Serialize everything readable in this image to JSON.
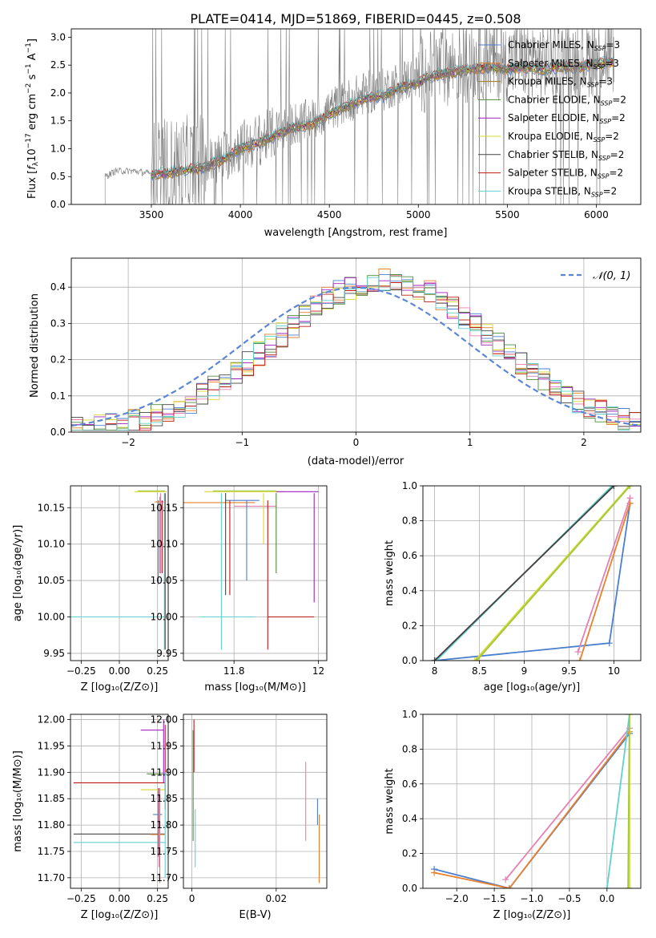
{
  "chart_data": [
    {
      "id": "spectrum",
      "type": "line",
      "title": "PLATE=0414, MJD=51869, FIBERID=0445, z=0.508",
      "xlabel": "wavelength [Angstrom, rest frame]",
      "ylabel": "Flux [fλ 10⁻¹⁷ erg cm⁻² s⁻¹ A⁻¹]",
      "xlim": [
        3050,
        6250
      ],
      "ylim": [
        0,
        3.15
      ],
      "xticks": [
        3500,
        4000,
        4500,
        5000,
        5500,
        6000
      ],
      "yticks": [
        0.0,
        0.5,
        1.0,
        1.5,
        2.0,
        2.5,
        3.0
      ],
      "data_x": [
        3240,
        3300,
        3400,
        3500,
        3600,
        3700,
        3800,
        3900,
        4000,
        4100,
        4200,
        4300,
        4400,
        4500,
        4600,
        4700,
        4800,
        4900,
        5000,
        5100,
        5200,
        5300,
        5400,
        5500,
        5600,
        5700,
        5800,
        5900,
        6000,
        6100
      ],
      "data_flux": [
        0.5,
        0.6,
        0.6,
        0.55,
        0.6,
        0.65,
        0.7,
        0.85,
        1.05,
        1.15,
        1.3,
        1.45,
        1.5,
        1.7,
        1.85,
        2.0,
        2.05,
        2.2,
        2.3,
        2.45,
        2.5,
        2.55,
        2.6,
        2.55,
        2.6,
        2.55,
        2.6,
        2.6,
        2.65,
        2.7
      ],
      "models": [
        {
          "name": "Chabrier MILES, N_SSP=3",
          "color": "#4a7fd0"
        },
        {
          "name": "Salpeter MILES, N_SSP=3",
          "color": "#e8802c"
        },
        {
          "name": "Kroupa MILES, N_SSP=3",
          "color": "#a0781e"
        },
        {
          "name": "Chabrier ELODIE, N_SSP=2",
          "color": "#4e8c3a"
        },
        {
          "name": "Salpeter ELODIE, N_SSP=2",
          "color": "#a020c0"
        },
        {
          "name": "Kroupa ELODIE, N_SSP=2",
          "color": "#d8d830"
        },
        {
          "name": "Chabrier STELIB, N_SSP=2",
          "color": "#444444"
        },
        {
          "name": "Salpeter STELIB, N_SSP=2",
          "color": "#c01818"
        },
        {
          "name": "Kroupa STELIB, N_SSP=2",
          "color": "#60d0d0"
        }
      ],
      "legend_names": [
        "Chabrier MILES, N",
        "Salpeter MILES, N",
        "Kroupa MILES, N",
        "Chabrier ELODIE, N",
        "Salpeter ELODIE, N",
        "Kroupa ELODIE, N",
        "Chabrier STELIB, N",
        "Salpeter STELIB, N",
        "Kroupa STELIB, N"
      ],
      "legend_sub": "SSP",
      "legend_nvals": [
        "=3",
        "=3",
        "=3",
        "=2",
        "=2",
        "=2",
        "=2",
        "=2",
        "=2"
      ],
      "legend": "top-right"
    },
    {
      "id": "residuals",
      "type": "histogram",
      "xlabel": "(data-model)/error",
      "ylabel": "Normed distribution",
      "xlim": [
        -2.5,
        2.5
      ],
      "ylim": [
        0,
        0.48
      ],
      "xticks": [
        -2,
        -1,
        0,
        1,
        2
      ],
      "yticks": [
        0.0,
        0.1,
        0.2,
        0.3,
        0.4
      ],
      "legend_label": "𝒩(0, 1)",
      "legend": "top-right",
      "grid": true
    },
    {
      "id": "age-vs-Z",
      "type": "errorbar",
      "xlabel": "Z [log₁₀(Z/Z⊙)]",
      "ylabel": "age  [log₁₀(age/yr)]",
      "xlim": [
        -0.32,
        0.32
      ],
      "ylim": [
        9.94,
        10.18
      ],
      "xticks": [
        -0.25,
        0.0,
        0.25
      ],
      "xticklabels": [
        "−0.25",
        "0.00",
        "0.25"
      ],
      "yticks": [
        9.95,
        10.0,
        10.05,
        10.1,
        10.15
      ],
      "grid": true
    },
    {
      "id": "age-vs-mass",
      "type": "errorbar",
      "xlabel": "mass [log₁₀(M/M⊙)]",
      "xlim": [
        11.68,
        12.02
      ],
      "ylim": [
        9.94,
        10.18
      ],
      "xticks": [
        11.8,
        12.0
      ],
      "yticks": [
        9.95,
        10.0,
        10.05,
        10.1,
        10.15
      ],
      "grid": true
    },
    {
      "id": "weight-vs-age",
      "type": "line",
      "xlabel": "age  [log₁₀(age/yr)]",
      "ylabel": "mass weight",
      "xlim": [
        7.87,
        10.3
      ],
      "ylim": [
        0,
        1
      ],
      "xticks": [
        8.0,
        8.5,
        9.0,
        9.5,
        10.0
      ],
      "yticks": [
        0.0,
        0.2,
        0.4,
        0.6,
        0.8,
        1.0
      ],
      "series": [
        {
          "color": "#4a7fd0",
          "x": [
            8.0,
            9.95,
            10.18
          ],
          "y": [
            0.0,
            0.1,
            0.9
          ]
        },
        {
          "color": "#e8802c",
          "x": [
            9.62,
            10.18
          ],
          "y": [
            0.0,
            0.9
          ]
        },
        {
          "color": "#e87fb0",
          "x": [
            9.6,
            10.18
          ],
          "y": [
            0.05,
            0.93
          ]
        },
        {
          "color": "#d8d830",
          "x": [
            8.45,
            10.17
          ],
          "y": [
            0.0,
            1.0
          ]
        },
        {
          "color": "#a0c840",
          "x": [
            8.47,
            10.18
          ],
          "y": [
            0.0,
            1.0
          ]
        },
        {
          "color": "#c01818",
          "x": [
            8.0,
            10.0
          ],
          "y": [
            0.0,
            1.0
          ]
        },
        {
          "color": "#60d0d0",
          "x": [
            8.02,
            9.98
          ],
          "y": [
            0.0,
            1.0
          ]
        },
        {
          "color": "#444444",
          "x": [
            8.0,
            10.0
          ],
          "y": [
            0.0,
            1.0
          ]
        }
      ],
      "grid": true
    },
    {
      "id": "mass-vs-Z",
      "type": "errorbar",
      "xlabel": "Z [log₁₀(Z/Z⊙)]",
      "ylabel": "mass [log₁₀(M/M⊙)]",
      "xlim": [
        -0.32,
        0.32
      ],
      "ylim": [
        11.68,
        12.01
      ],
      "xticks": [
        -0.25,
        0.0,
        0.25
      ],
      "xticklabels": [
        "−0.25",
        "0.00",
        "0.25"
      ],
      "yticks": [
        11.7,
        11.75,
        11.8,
        11.85,
        11.9,
        11.95,
        12.0
      ],
      "grid": true
    },
    {
      "id": "mass-vs-ebv",
      "type": "errorbar",
      "xlabel": "E(B-V)",
      "xlim": [
        -0.002,
        0.032
      ],
      "ylim": [
        11.68,
        12.01
      ],
      "xticks": [
        0.0,
        0.02
      ],
      "yticks": [
        11.7,
        11.75,
        11.8,
        11.85,
        11.9,
        11.95,
        12.0
      ],
      "grid": true
    },
    {
      "id": "weight-vs-Z",
      "type": "line",
      "xlabel": "Z [log₁₀(Z/Z⊙)]",
      "ylabel": "mass weight",
      "xlim": [
        -2.45,
        0.45
      ],
      "ylim": [
        0,
        1
      ],
      "xticks": [
        -2.0,
        -1.5,
        -1.0,
        -0.5,
        0.0
      ],
      "xticklabels": [
        "−2.0",
        "−1.5",
        "−1.0",
        "−0.5",
        "0.0"
      ],
      "yticks": [
        0.0,
        0.2,
        0.4,
        0.6,
        0.8,
        1.0
      ],
      "series": [
        {
          "color": "#4a7fd0",
          "x": [
            -2.3,
            -1.3,
            0.3
          ],
          "y": [
            0.11,
            0.0,
            0.89
          ]
        },
        {
          "color": "#e8802c",
          "x": [
            -2.3,
            -1.3,
            0.3
          ],
          "y": [
            0.09,
            0.0,
            0.9
          ]
        },
        {
          "color": "#e87fb0",
          "x": [
            -1.35,
            0.3
          ],
          "y": [
            0.05,
            0.92
          ]
        },
        {
          "color": "#60d0d0",
          "x": [
            0.0,
            0.3
          ],
          "y": [
            0.0,
            1.0
          ]
        },
        {
          "color": "#d8d830",
          "x": [
            0.3,
            0.3
          ],
          "y": [
            0.0,
            1.0
          ]
        },
        {
          "color": "#a0c840",
          "x": [
            0.28,
            0.3
          ],
          "y": [
            0.0,
            1.0
          ]
        }
      ],
      "grid": true
    }
  ]
}
